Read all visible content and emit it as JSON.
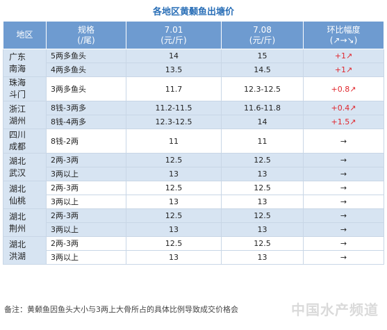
{
  "title": "各地区黄颡鱼出塘价",
  "headers": {
    "region": "地区",
    "spec_line1": "规格",
    "spec_line2": "(/尾)",
    "date1_line1": "7.01",
    "date1_line2": "(元/斤)",
    "date2_line1": "7.08",
    "date2_line2": "(元/斤)",
    "change_line1": "环比幅度",
    "change_line2": "(↗→↘)"
  },
  "rows": [
    {
      "region_l1": "广东",
      "region_l2": "南海",
      "items": [
        {
          "spec": "5两多鱼头",
          "p1": "14",
          "p2": "15",
          "change": "+1↗",
          "dir": "up"
        },
        {
          "spec": "4两多鱼头",
          "p1": "13.5",
          "p2": "14.5",
          "change": "+1↗",
          "dir": "up"
        }
      ]
    },
    {
      "region_l1": "珠海",
      "region_l2": "斗门",
      "items": [
        {
          "spec": "3两多鱼头",
          "p1": "11.7",
          "p2": "12.3-12.5",
          "change": "+0.8↗",
          "dir": "up"
        }
      ]
    },
    {
      "region_l1": "浙江",
      "region_l2": "湖州",
      "items": [
        {
          "spec": "8钱-3两多",
          "p1": "11.2-11.5",
          "p2": "11.6-11.8",
          "change": "+0.4↗",
          "dir": "up"
        },
        {
          "spec": "8钱-4两多",
          "p1": "12.3-12.5",
          "p2": "14",
          "change": "+1.5↗",
          "dir": "up"
        }
      ]
    },
    {
      "region_l1": "四川",
      "region_l2": "成都",
      "items": [
        {
          "spec": "8钱-2两",
          "p1": "11",
          "p2": "11",
          "change": "→",
          "dir": "flat"
        }
      ]
    },
    {
      "region_l1": "湖北",
      "region_l2": "武汉",
      "items": [
        {
          "spec": "2两-3两",
          "p1": "12.5",
          "p2": "12.5",
          "change": "→",
          "dir": "flat"
        },
        {
          "spec": "3两以上",
          "p1": "13",
          "p2": "13",
          "change": "→",
          "dir": "flat"
        }
      ]
    },
    {
      "region_l1": "湖北",
      "region_l2": "仙桃",
      "items": [
        {
          "spec": "2两-3两",
          "p1": "12.5",
          "p2": "12.5",
          "change": "→",
          "dir": "flat"
        },
        {
          "spec": "3两以上",
          "p1": "13",
          "p2": "13",
          "change": "→",
          "dir": "flat"
        }
      ]
    },
    {
      "region_l1": "湖北",
      "region_l2": "荆州",
      "items": [
        {
          "spec": "2两-3两",
          "p1": "12.5",
          "p2": "12.5",
          "change": "→",
          "dir": "flat"
        },
        {
          "spec": "3两以上",
          "p1": "13",
          "p2": "13",
          "change": "→",
          "dir": "flat"
        }
      ]
    },
    {
      "region_l1": "湖北",
      "region_l2": "洪湖",
      "items": [
        {
          "spec": "2两-3两",
          "p1": "12.5",
          "p2": "12.5",
          "change": "→",
          "dir": "flat"
        },
        {
          "spec": "3两以上",
          "p1": "13",
          "p2": "13",
          "change": "→",
          "dir": "flat"
        }
      ]
    }
  ],
  "note": "备注：黄颡鱼因鱼头大小与3两上大骨所占的具体比例导致成交价格会",
  "watermark": "中国水产频道",
  "colors": {
    "header_bg": "#6e9bd0",
    "row_alt_bg": "#d7e4f2",
    "up_color": "#e0262c",
    "title_color": "#2a6fb7"
  }
}
